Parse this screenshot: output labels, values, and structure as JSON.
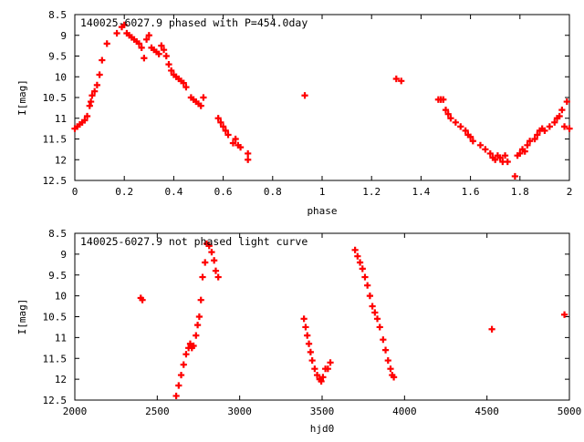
{
  "chart_data": [
    {
      "type": "scatter",
      "title": "140025-6027.9 phased with P=454.0day",
      "xlabel": "phase",
      "ylabel": "I[mag]",
      "xlim": [
        0,
        2
      ],
      "ylim": [
        8.5,
        12.5
      ],
      "y_inverted": true,
      "grid": false,
      "marker_color": "#ff0000",
      "x_ticks": [
        "0",
        "0.2",
        "0.4",
        "0.6",
        "0.8",
        "1",
        "1.2",
        "1.4",
        "1.6",
        "1.8",
        "2"
      ],
      "y_ticks": [
        "8.5",
        "9",
        "9.5",
        "10",
        "10.5",
        "11",
        "11.5",
        "12",
        "12.5"
      ],
      "points": [
        [
          0.0,
          11.25
        ],
        [
          0.01,
          11.2
        ],
        [
          0.02,
          11.15
        ],
        [
          0.03,
          11.1
        ],
        [
          0.04,
          11.05
        ],
        [
          0.05,
          10.95
        ],
        [
          0.06,
          10.7
        ],
        [
          0.065,
          10.6
        ],
        [
          0.07,
          10.45
        ],
        [
          0.08,
          10.35
        ],
        [
          0.09,
          10.2
        ],
        [
          0.1,
          9.95
        ],
        [
          0.11,
          9.6
        ],
        [
          0.13,
          9.2
        ],
        [
          0.17,
          8.95
        ],
        [
          0.19,
          8.8
        ],
        [
          0.2,
          8.75
        ],
        [
          0.21,
          8.95
        ],
        [
          0.22,
          9.0
        ],
        [
          0.23,
          9.05
        ],
        [
          0.24,
          9.1
        ],
        [
          0.25,
          9.15
        ],
        [
          0.26,
          9.2
        ],
        [
          0.27,
          9.3
        ],
        [
          0.28,
          9.55
        ],
        [
          0.29,
          9.1
        ],
        [
          0.3,
          9.0
        ],
        [
          0.31,
          9.3
        ],
        [
          0.32,
          9.35
        ],
        [
          0.33,
          9.4
        ],
        [
          0.34,
          9.45
        ],
        [
          0.35,
          9.25
        ],
        [
          0.36,
          9.35
        ],
        [
          0.37,
          9.5
        ],
        [
          0.38,
          9.7
        ],
        [
          0.39,
          9.85
        ],
        [
          0.4,
          9.95
        ],
        [
          0.41,
          10.0
        ],
        [
          0.42,
          10.05
        ],
        [
          0.43,
          10.1
        ],
        [
          0.44,
          10.15
        ],
        [
          0.45,
          10.25
        ],
        [
          0.47,
          10.5
        ],
        [
          0.48,
          10.55
        ],
        [
          0.49,
          10.6
        ],
        [
          0.5,
          10.65
        ],
        [
          0.51,
          10.7
        ],
        [
          0.52,
          10.5
        ],
        [
          0.58,
          11.0
        ],
        [
          0.59,
          11.1
        ],
        [
          0.6,
          11.2
        ],
        [
          0.61,
          11.3
        ],
        [
          0.62,
          11.4
        ],
        [
          0.64,
          11.6
        ],
        [
          0.65,
          11.5
        ],
        [
          0.66,
          11.65
        ],
        [
          0.67,
          11.7
        ],
        [
          0.7,
          11.85
        ],
        [
          0.7,
          12.0
        ],
        [
          0.93,
          10.45
        ],
        [
          1.3,
          10.05
        ],
        [
          1.32,
          10.1
        ],
        [
          1.47,
          10.55
        ],
        [
          1.48,
          10.55
        ],
        [
          1.49,
          10.55
        ],
        [
          1.5,
          10.8
        ],
        [
          1.51,
          10.9
        ],
        [
          1.52,
          11.0
        ],
        [
          1.54,
          11.1
        ],
        [
          1.56,
          11.2
        ],
        [
          1.58,
          11.3
        ],
        [
          1.59,
          11.4
        ],
        [
          1.6,
          11.45
        ],
        [
          1.61,
          11.55
        ],
        [
          1.64,
          11.65
        ],
        [
          1.66,
          11.75
        ],
        [
          1.68,
          11.85
        ],
        [
          1.69,
          11.95
        ],
        [
          1.7,
          12.0
        ],
        [
          1.71,
          11.9
        ],
        [
          1.72,
          11.95
        ],
        [
          1.73,
          12.05
        ],
        [
          1.74,
          11.9
        ],
        [
          1.75,
          12.05
        ],
        [
          1.78,
          12.4
        ],
        [
          1.79,
          11.9
        ],
        [
          1.8,
          11.85
        ],
        [
          1.81,
          11.75
        ],
        [
          1.82,
          11.8
        ],
        [
          1.83,
          11.65
        ],
        [
          1.84,
          11.55
        ],
        [
          1.86,
          11.5
        ],
        [
          1.87,
          11.4
        ],
        [
          1.88,
          11.3
        ],
        [
          1.89,
          11.25
        ],
        [
          1.9,
          11.3
        ],
        [
          1.92,
          11.2
        ],
        [
          1.94,
          11.1
        ],
        [
          1.95,
          11.0
        ],
        [
          1.96,
          10.95
        ],
        [
          1.97,
          10.8
        ],
        [
          1.98,
          11.2
        ],
        [
          1.99,
          10.6
        ],
        [
          2.0,
          11.25
        ]
      ]
    },
    {
      "type": "scatter",
      "title": "140025-6027.9 not phased light curve",
      "xlabel": "hjd0",
      "ylabel": "I[mag]",
      "xlim": [
        2000,
        5000
      ],
      "ylim": [
        8.5,
        12.5
      ],
      "y_inverted": true,
      "grid": false,
      "marker_color": "#ff0000",
      "x_ticks": [
        "2000",
        "2500",
        "3000",
        "3500",
        "4000",
        "4500",
        "5000"
      ],
      "y_ticks": [
        "8.5",
        "9",
        "9.5",
        "10",
        "10.5",
        "11",
        "11.5",
        "12",
        "12.5"
      ],
      "points": [
        [
          2400,
          10.05
        ],
        [
          2410,
          10.1
        ],
        [
          2615,
          12.4
        ],
        [
          2630,
          12.15
        ],
        [
          2645,
          11.9
        ],
        [
          2660,
          11.65
        ],
        [
          2675,
          11.4
        ],
        [
          2690,
          11.25
        ],
        [
          2700,
          11.15
        ],
        [
          2710,
          11.25
        ],
        [
          2720,
          11.2
        ],
        [
          2735,
          10.95
        ],
        [
          2745,
          10.7
        ],
        [
          2755,
          10.5
        ],
        [
          2765,
          10.1
        ],
        [
          2775,
          9.55
        ],
        [
          2790,
          9.2
        ],
        [
          2800,
          8.75
        ],
        [
          2815,
          8.8
        ],
        [
          2830,
          8.95
        ],
        [
          2845,
          9.15
        ],
        [
          2855,
          9.4
        ],
        [
          2870,
          9.55
        ],
        [
          3390,
          10.55
        ],
        [
          3400,
          10.75
        ],
        [
          3410,
          10.95
        ],
        [
          3420,
          11.15
        ],
        [
          3430,
          11.35
        ],
        [
          3440,
          11.55
        ],
        [
          3455,
          11.75
        ],
        [
          3470,
          11.9
        ],
        [
          3485,
          12.0
        ],
        [
          3495,
          12.05
        ],
        [
          3505,
          11.95
        ],
        [
          3520,
          11.75
        ],
        [
          3535,
          11.75
        ],
        [
          3550,
          11.6
        ],
        [
          3700,
          8.9
        ],
        [
          3715,
          9.05
        ],
        [
          3730,
          9.2
        ],
        [
          3745,
          9.35
        ],
        [
          3760,
          9.55
        ],
        [
          3775,
          9.75
        ],
        [
          3790,
          10.0
        ],
        [
          3805,
          10.25
        ],
        [
          3820,
          10.4
        ],
        [
          3835,
          10.55
        ],
        [
          3850,
          10.75
        ],
        [
          3870,
          11.05
        ],
        [
          3885,
          11.3
        ],
        [
          3900,
          11.55
        ],
        [
          3915,
          11.75
        ],
        [
          3925,
          11.9
        ],
        [
          3935,
          11.95
        ],
        [
          4530,
          10.8
        ],
        [
          4970,
          10.45
        ]
      ]
    }
  ]
}
